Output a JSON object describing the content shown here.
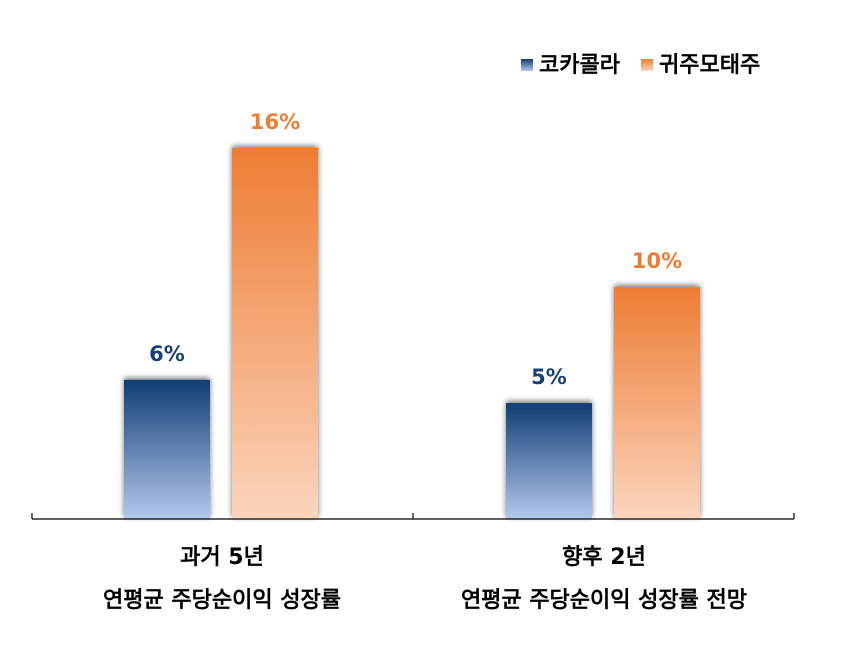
{
  "chart_data": {
    "type": "bar",
    "categories": [
      [
        "과거 5년",
        "연평균 주당순이익 성장률"
      ],
      [
        "향후 2년",
        "연평균 주당순이익 성장률 전망"
      ]
    ],
    "series": [
      {
        "name": "코카콜라",
        "values": [
          6,
          5
        ],
        "labels": [
          "6%",
          "5%"
        ],
        "color": "#16427a"
      },
      {
        "name": "귀주모태주",
        "values": [
          16,
          10
        ],
        "labels": [
          "16%",
          "10%"
        ],
        "color": "#ee7d33"
      }
    ],
    "ylim": [
      0,
      16
    ],
    "legend": "top-right",
    "grid": false,
    "colors": {
      "blue_top": "#103d73",
      "blue_bottom": "#b3c9ee",
      "orange_top": "#ee7d33",
      "orange_bottom": "#fbd5bd",
      "label_blue": "#16427a",
      "label_orange": "#ee7d33",
      "axis": "#000000"
    }
  }
}
